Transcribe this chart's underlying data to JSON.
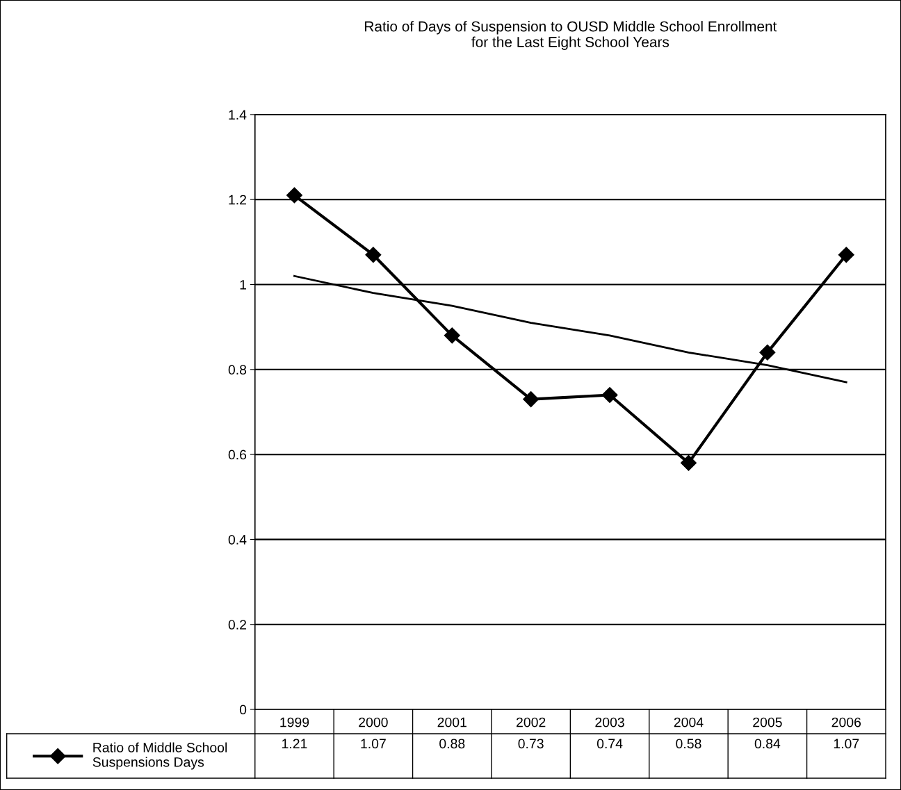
{
  "chart_data": {
    "type": "line",
    "title": "Ratio of Days of Suspension to OUSD Middle School Enrollment\nfor the Last Eight School Years",
    "categories": [
      "1999",
      "2000",
      "2001",
      "2002",
      "2003",
      "2004",
      "2005",
      "2006"
    ],
    "series": [
      {
        "name": "Ratio of Middle School\nSuspensions Days",
        "color": "#000000",
        "values": [
          1.21,
          1.07,
          0.88,
          0.73,
          0.74,
          0.58,
          0.84,
          1.07
        ],
        "value_labels": [
          "1.21",
          "1.07",
          "0.88",
          "0.73",
          "0.74",
          "0.58",
          "0.84",
          "1.07"
        ],
        "marker": "diamond"
      },
      {
        "type": "line",
        "color": "#000000",
        "values": [
          1.02,
          0.98,
          0.95,
          0.91,
          0.88,
          0.84,
          0.81,
          0.77
        ],
        "marker": "none"
      }
    ],
    "ylim": [
      0,
      1.4
    ],
    "yticks": [
      0,
      0.2,
      0.4,
      0.6,
      0.8,
      1,
      1.2,
      1.4
    ],
    "grid": "y",
    "legend": "bottom left",
    "line_style": "solid"
  }
}
